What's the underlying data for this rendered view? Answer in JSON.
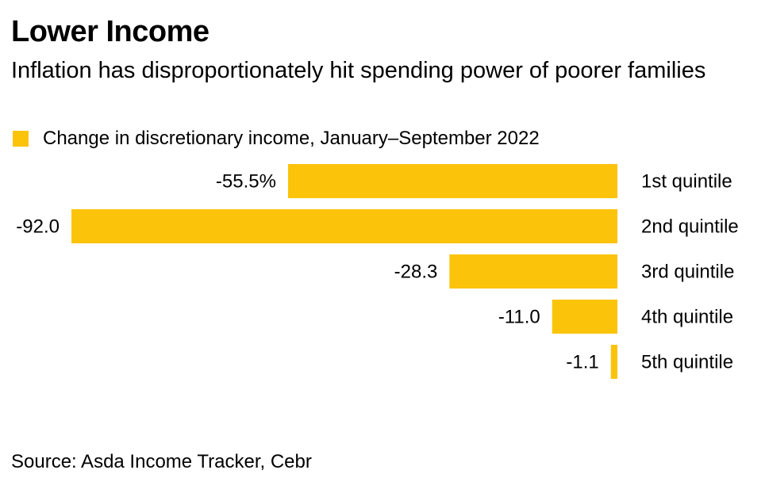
{
  "title": "Lower Income",
  "subtitle": "Inflation has disproportionately hit spending power of poorer families",
  "source": "Source: Asda Income Tracker, Cebr",
  "colors": {
    "bar": "#FCC30B",
    "text": "#000000",
    "background": "#FFFFFF"
  },
  "chart_data": {
    "type": "bar",
    "orientation": "horizontal",
    "categories": [
      "1st quintile",
      "2nd quintile",
      "3rd quintile",
      "4th quintile",
      "5th quintile"
    ],
    "series": [
      {
        "name": "Change in discretionary income, January–September 2022",
        "values": [
          -55.5,
          -92.0,
          -28.3,
          -11.0,
          -1.1
        ]
      }
    ],
    "data_labels": [
      "-55.5%",
      "-92.0",
      "-28.3",
      "-11.0",
      "-1.1"
    ],
    "xlim": [
      -92.0,
      0
    ],
    "grid": false,
    "legend_position": "top-left"
  }
}
